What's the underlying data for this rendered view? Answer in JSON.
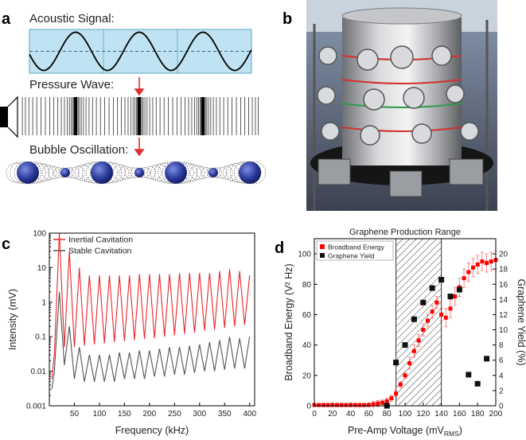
{
  "panel_a": {
    "label": "a",
    "acoustic_signal": "Acoustic Signal:",
    "pressure_wave": "Pressure Wave:",
    "bubble_oscillation": "Bubble Oscillation:"
  },
  "panel_b": {
    "label": "b"
  },
  "chart_data": [
    {
      "type": "line",
      "panel_label": "c",
      "x_label": "Frequency (kHz)",
      "y_label": "Intensity (mV)",
      "log_y": true,
      "legend": "top-left",
      "xlim": [
        0,
        410
      ],
      "xticks": [
        50,
        100,
        150,
        200,
        250,
        300,
        350,
        400
      ],
      "ylim": [
        0.001,
        100
      ],
      "yticks": [
        0.001,
        0.01,
        0.1,
        1,
        10,
        100
      ],
      "x": [
        5,
        10,
        20,
        30,
        40,
        50,
        60,
        70,
        80,
        90,
        100,
        110,
        120,
        130,
        140,
        150,
        160,
        170,
        180,
        190,
        200,
        210,
        220,
        230,
        240,
        250,
        260,
        270,
        280,
        290,
        300,
        310,
        320,
        330,
        340,
        350,
        360,
        370,
        380,
        390,
        400
      ],
      "series": [
        {
          "name": "Inertial Cavitation",
          "color": "#e8282b",
          "values": [
            0.006,
            0.03,
            100,
            0.05,
            30,
            0.05,
            10,
            0.055,
            6,
            0.06,
            6,
            0.065,
            6,
            0.07,
            6,
            0.075,
            6,
            0.08,
            6.5,
            0.085,
            6.5,
            0.09,
            6.5,
            0.1,
            6.5,
            0.11,
            7,
            0.12,
            7,
            0.13,
            7,
            0.15,
            7,
            0.16,
            8,
            0.18,
            9,
            0.2,
            8,
            0.22,
            6
          ]
        },
        {
          "name": "Stable Cavitation",
          "color": "#555555",
          "values": [
            0.003,
            0.01,
            2,
            0.015,
            0.2,
            0.006,
            0.05,
            0.005,
            0.03,
            0.005,
            0.03,
            0.005,
            0.03,
            0.005,
            0.035,
            0.006,
            0.035,
            0.006,
            0.04,
            0.006,
            0.04,
            0.007,
            0.045,
            0.007,
            0.05,
            0.008,
            0.05,
            0.008,
            0.055,
            0.009,
            0.06,
            0.01,
            0.07,
            0.01,
            0.08,
            0.011,
            0.1,
            0.012,
            0.09,
            0.012,
            0.1
          ]
        }
      ]
    },
    {
      "type": "scatter",
      "panel_label": "d",
      "title": "Graphene Production Range",
      "x_label": {
        "main": "Pre-Amp Voltage (mV",
        "sub": "RMS",
        "end": ")"
      },
      "y_label": "Broadband Energy (V² Hz)",
      "y2_label": "Graphene Yield (%)",
      "legend": "top-left",
      "shaded_range": [
        90,
        140
      ],
      "xlim": [
        0,
        200
      ],
      "xticks": [
        0,
        20,
        40,
        60,
        80,
        100,
        120,
        140,
        160,
        180,
        200
      ],
      "ylim": [
        0,
        110
      ],
      "yticks": [
        0,
        20,
        40,
        60,
        80,
        100
      ],
      "y2lim": [
        0,
        22
      ],
      "y2ticks": [
        0,
        2,
        4,
        6,
        8,
        10,
        12,
        14,
        16,
        18,
        20
      ],
      "series": [
        {
          "name": "Broadband Energy",
          "color": "#ff0000",
          "x": [
            0,
            5,
            10,
            15,
            20,
            25,
            30,
            35,
            40,
            45,
            50,
            55,
            60,
            65,
            70,
            75,
            80,
            85,
            90,
            95,
            100,
            105,
            110,
            115,
            120,
            125,
            130,
            135,
            140,
            145,
            150,
            155,
            160,
            165,
            170,
            175,
            180,
            185,
            190,
            195,
            200
          ],
          "values": [
            0.5,
            0.5,
            0.5,
            0.5,
            0.5,
            0.5,
            0.5,
            0.5,
            0.5,
            0.5,
            0.5,
            0.5,
            0.5,
            1,
            1.5,
            2,
            3,
            5,
            8,
            14,
            20,
            28,
            36,
            43,
            50,
            56,
            62,
            68,
            60,
            58,
            64,
            72,
            78,
            84,
            88,
            91,
            93,
            95,
            94,
            95,
            96
          ],
          "errors": [
            1,
            1,
            1,
            1,
            1,
            1,
            1,
            1,
            1,
            1,
            1,
            1,
            1,
            2,
            2,
            2,
            2,
            2,
            2,
            2,
            2,
            4,
            4,
            4,
            4,
            4,
            4,
            4,
            4,
            6,
            6,
            6,
            6,
            6,
            6,
            6,
            6,
            6,
            6,
            6,
            6
          ]
        },
        {
          "name": "Graphene Yield",
          "color": "#111111",
          "axis": "y2",
          "x": [
            80,
            90,
            100,
            110,
            120,
            130,
            140,
            150,
            160,
            170,
            180,
            190
          ],
          "values": [
            0,
            5.7,
            8,
            11.4,
            13.6,
            15.5,
            16.6,
            14.4,
            15.3,
            4.1,
            2.9,
            6.2
          ]
        }
      ]
    }
  ]
}
